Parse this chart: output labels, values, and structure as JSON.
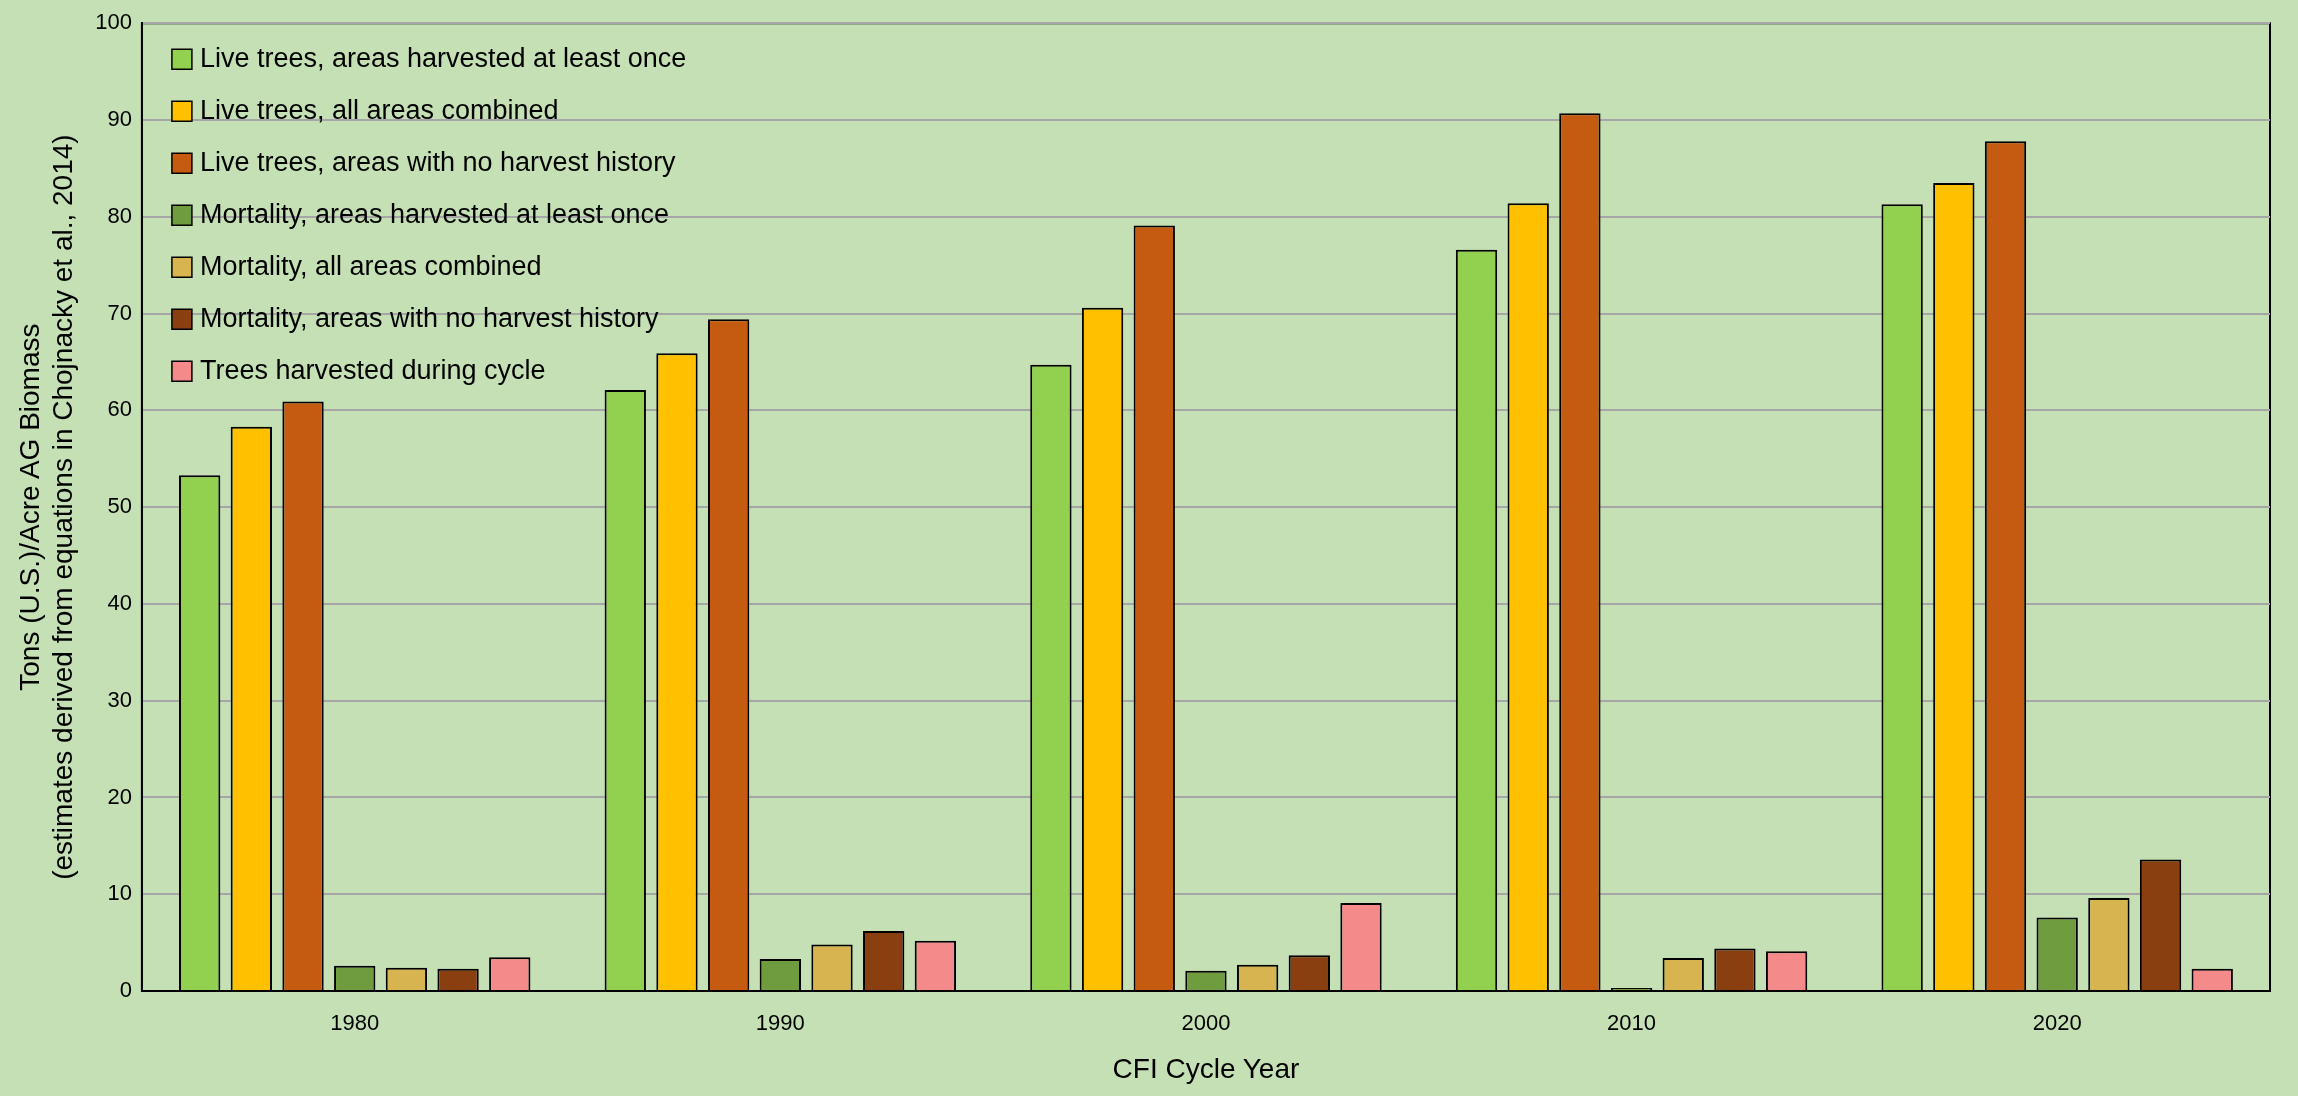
{
  "chart_data": {
    "type": "bar",
    "xlabel": "CFI Cycle Year",
    "ylabel": "Tons (U.S.)/Acre AG Biomass\n(estimates derived from equations in Chojnacky et al., 2014)",
    "categories": [
      "1980",
      "1990",
      "2000",
      "2010",
      "2020"
    ],
    "series": [
      {
        "name": "Live trees, areas harvested at least once",
        "color": "#92d050",
        "values": [
          53.3,
          62.1,
          64.7,
          76.6,
          81.3
        ]
      },
      {
        "name": "Live trees, all areas combined",
        "color": "#ffc000",
        "values": [
          58.3,
          65.9,
          70.6,
          81.4,
          83.5
        ]
      },
      {
        "name": "Live trees, areas with no harvest history",
        "color": "#c55a11",
        "values": [
          60.9,
          69.4,
          79.1,
          90.7,
          87.8
        ]
      },
      {
        "name": "Mortality, areas harvested at least once",
        "color": "#6e9c3e",
        "values": [
          2.6,
          3.3,
          2.1,
          0.3,
          7.6
        ]
      },
      {
        "name": "Mortality, all areas combined",
        "color": "#d8b450",
        "values": [
          2.4,
          4.8,
          2.7,
          3.4,
          9.6
        ]
      },
      {
        "name": "Mortality, areas with no harvest history",
        "color": "#8a3f10",
        "values": [
          2.3,
          6.2,
          3.7,
          4.4,
          13.6
        ]
      },
      {
        "name": "Trees harvested during cycle",
        "color": "#f58a8a",
        "values": [
          3.5,
          5.2,
          9.1,
          4.1,
          2.3
        ]
      }
    ],
    "ylim": [
      0,
      100
    ],
    "yticks": [
      0,
      10,
      20,
      30,
      40,
      50,
      60,
      70,
      80,
      90,
      100
    ],
    "grid": "y",
    "legend": "top left"
  }
}
